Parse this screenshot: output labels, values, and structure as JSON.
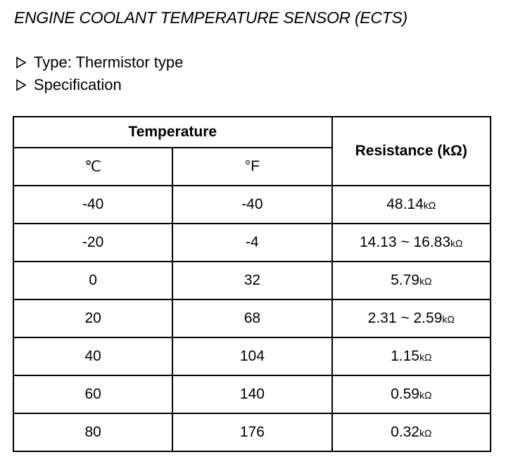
{
  "title": "ENGINE COOLANT TEMPERATURE SENSOR (ECTS)",
  "items": [
    "Type: Thermistor type",
    "Specification"
  ],
  "table": {
    "header": {
      "temperature": "Temperature",
      "celsius": "℃",
      "fahrenheit": "°F",
      "resistance": "Resistance (kΩ)"
    },
    "rows": [
      {
        "celsius": "-40",
        "fahrenheit": "-40",
        "resistance": "48.14",
        "unit": "kΩ"
      },
      {
        "celsius": "-20",
        "fahrenheit": "-4",
        "resistance": "14.13 ~ 16.83",
        "unit": "kΩ"
      },
      {
        "celsius": "0",
        "fahrenheit": "32",
        "resistance": "5.79",
        "unit": "kΩ"
      },
      {
        "celsius": "20",
        "fahrenheit": "68",
        "resistance": "2.31 ~ 2.59",
        "unit": "kΩ"
      },
      {
        "celsius": "40",
        "fahrenheit": "104",
        "resistance": "1.15",
        "unit": "kΩ"
      },
      {
        "celsius": "60",
        "fahrenheit": "140",
        "resistance": "0.59",
        "unit": "kΩ"
      },
      {
        "celsius": "80",
        "fahrenheit": "176",
        "resistance": "0.32",
        "unit": "kΩ"
      }
    ]
  }
}
